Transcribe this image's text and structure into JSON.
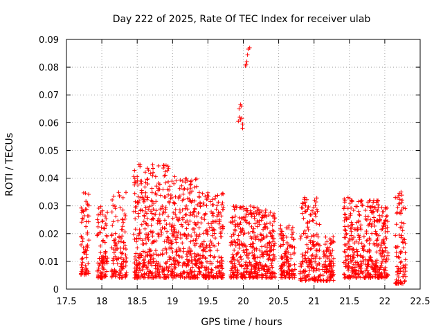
{
  "chart_data": {
    "type": "scatter",
    "title": "Day 222 of 2025, Rate Of TEC Index for receiver ulab",
    "xlabel": "GPS time / hours",
    "ylabel": "ROTI / TECUs",
    "xlim": [
      17.5,
      22.5
    ],
    "ylim": [
      0,
      0.09
    ],
    "grid": true,
    "marker": "+",
    "color": "#ff0000",
    "x_ticks": [
      17.5,
      18,
      18.5,
      19,
      19.5,
      20,
      20.5,
      21,
      21.5,
      22,
      22.5
    ],
    "x_tick_labels": [
      "17.5",
      "18",
      "18.5",
      "19",
      "19.5",
      "20",
      "20.5",
      "21",
      "21.5",
      "22",
      "22.5"
    ],
    "y_ticks": [
      0,
      0.01,
      0.02,
      0.03,
      0.04,
      0.05,
      0.06,
      0.07,
      0.08,
      0.09
    ],
    "y_tick_labels": [
      "0",
      "0.01",
      "0.02",
      "0.03",
      "0.04",
      "0.05",
      "0.06",
      "0.07",
      "0.08",
      "0.09"
    ],
    "clusters": [
      {
        "x_start": 17.7,
        "x_end": 17.82,
        "y_min": 0.005,
        "y_max": 0.035,
        "count": 70
      },
      {
        "x_start": 17.93,
        "x_end": 18.08,
        "y_min": 0.004,
        "y_max": 0.03,
        "count": 90
      },
      {
        "x_start": 18.14,
        "x_end": 18.35,
        "y_min": 0.004,
        "y_max": 0.036,
        "count": 120
      },
      {
        "x_start": 18.45,
        "x_end": 19.0,
        "y_min": 0.004,
        "y_max": 0.045,
        "count": 380
      },
      {
        "x_start": 19.0,
        "x_end": 19.35,
        "y_min": 0.004,
        "y_max": 0.04,
        "count": 240
      },
      {
        "x_start": 19.35,
        "x_end": 19.72,
        "y_min": 0.004,
        "y_max": 0.035,
        "count": 220
      },
      {
        "x_start": 19.82,
        "x_end": 20.22,
        "y_min": 0.004,
        "y_max": 0.03,
        "count": 260
      },
      {
        "x_start": 20.22,
        "x_end": 20.45,
        "y_min": 0.004,
        "y_max": 0.029,
        "count": 150
      },
      {
        "x_start": 20.52,
        "x_end": 20.73,
        "y_min": 0.004,
        "y_max": 0.023,
        "count": 120
      },
      {
        "x_start": 20.8,
        "x_end": 21.1,
        "y_min": 0.003,
        "y_max": 0.033,
        "count": 170
      },
      {
        "x_start": 21.12,
        "x_end": 21.28,
        "y_min": 0.003,
        "y_max": 0.02,
        "count": 90
      },
      {
        "x_start": 21.42,
        "x_end": 21.72,
        "y_min": 0.004,
        "y_max": 0.033,
        "count": 190
      },
      {
        "x_start": 21.72,
        "x_end": 22.05,
        "y_min": 0.004,
        "y_max": 0.032,
        "count": 230
      },
      {
        "x_start": 22.15,
        "x_end": 22.3,
        "y_min": 0.002,
        "y_max": 0.035,
        "count": 90
      }
    ],
    "outliers": [
      {
        "x": 19.93,
        "y": 0.0605
      },
      {
        "x": 19.95,
        "y": 0.062
      },
      {
        "x": 19.96,
        "y": 0.061
      },
      {
        "x": 19.94,
        "y": 0.065
      },
      {
        "x": 19.96,
        "y": 0.0665
      },
      {
        "x": 19.97,
        "y": 0.066
      },
      {
        "x": 19.98,
        "y": 0.0615
      },
      {
        "x": 19.99,
        "y": 0.0595
      },
      {
        "x": 19.99,
        "y": 0.058
      },
      {
        "x": 20.03,
        "y": 0.0805
      },
      {
        "x": 20.04,
        "y": 0.081
      },
      {
        "x": 20.05,
        "y": 0.082
      },
      {
        "x": 20.06,
        "y": 0.0845
      },
      {
        "x": 20.07,
        "y": 0.0865
      },
      {
        "x": 20.09,
        "y": 0.087
      },
      {
        "x": 18.5,
        "y": 0.0405
      },
      {
        "x": 18.88,
        "y": 0.0445
      },
      {
        "x": 19.03,
        "y": 0.0405
      },
      {
        "x": 18.62,
        "y": 0.0385
      },
      {
        "x": 20.87,
        "y": 0.033
      },
      {
        "x": 21.48,
        "y": 0.033
      },
      {
        "x": 22.15,
        "y": 0.033
      },
      {
        "x": 22.23,
        "y": 0.035
      }
    ]
  }
}
